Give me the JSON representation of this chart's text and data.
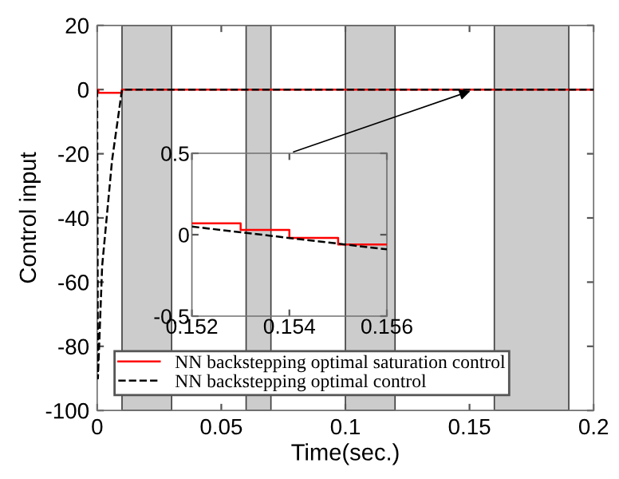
{
  "chart_data": [
    {
      "type": "line",
      "xlabel": "Time(sec.)",
      "ylabel": "Control input",
      "xlim": [
        0,
        0.2
      ],
      "ylim": [
        -100,
        20
      ],
      "xticks": [
        0,
        0.05,
        0.1,
        0.15,
        0.2
      ],
      "yticks": [
        -100,
        -80,
        -60,
        -40,
        -20,
        0,
        20
      ],
      "grid": false,
      "legend": "bottom left",
      "series": [
        {
          "name": "NN backstepping optimal saturation control",
          "color": "#ff0000",
          "line_style": "solid",
          "x": [
            0,
            0.0005,
            0.0005,
            0.01,
            0.01,
            0.2
          ],
          "values": [
            0,
            0,
            -1,
            -1,
            0,
            0
          ]
        },
        {
          "name": "NN backstepping optimal control",
          "color": "#000000",
          "line_style": "dashed",
          "x": [
            0,
            0.0003,
            0.002,
            0.006,
            0.01,
            0.2
          ],
          "values": [
            0,
            -90,
            -55,
            -22,
            0,
            0
          ]
        }
      ],
      "bands": [
        {
          "axis": "x",
          "from": 0.01,
          "to": 0.03,
          "color": "#cccccc"
        },
        {
          "axis": "x",
          "from": 0.06,
          "to": 0.07,
          "color": "#cccccc"
        },
        {
          "axis": "x",
          "from": 0.1,
          "to": 0.12,
          "color": "#cccccc"
        },
        {
          "axis": "x",
          "from": 0.16,
          "to": 0.19,
          "color": "#cccccc"
        }
      ]
    },
    {
      "type": "line",
      "xlim": [
        0.152,
        0.156
      ],
      "ylim": [
        -0.5,
        0.5
      ],
      "xticks": [
        0.152,
        0.154,
        0.156
      ],
      "yticks": [
        -0.5,
        0,
        0.5
      ],
      "grid": false,
      "series": [
        {
          "color": "#ff0000",
          "line_style": "solid",
          "x": [
            0.152,
            0.153,
            0.153,
            0.154,
            0.154,
            0.155,
            0.155,
            0.156
          ],
          "values": [
            0.07,
            0.07,
            0.03,
            0.03,
            -0.02,
            -0.02,
            -0.06,
            -0.06
          ]
        },
        {
          "color": "#000000",
          "line_style": "dashed",
          "x": [
            0.152,
            0.156
          ],
          "values": [
            0.05,
            -0.09
          ]
        }
      ]
    }
  ]
}
